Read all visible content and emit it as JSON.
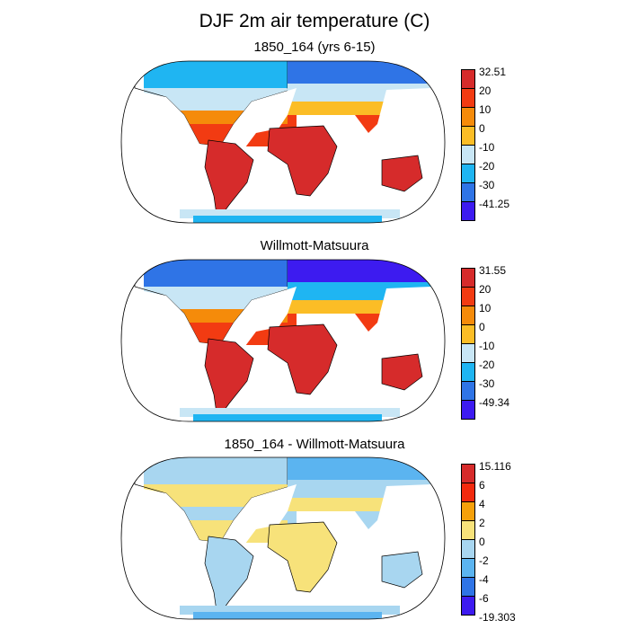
{
  "title": "DJF 2m air temperature (C)",
  "panels": [
    {
      "title": "1850_164 (yrs 6-15)",
      "colorbar": {
        "labels": [
          "32.51",
          "20",
          "10",
          "0",
          "-10",
          "-20",
          "-30",
          "-41.25"
        ],
        "colors": [
          "#d62b2b",
          "#f23b12",
          "#f58b0a",
          "#fbbd26",
          "#c8e6f5",
          "#1fb5f2",
          "#2f74e6",
          "#3d1bf0"
        ]
      }
    },
    {
      "title": "Willmott-Matsuura",
      "colorbar": {
        "labels": [
          "31.55",
          "20",
          "10",
          "0",
          "-10",
          "-20",
          "-30",
          "-49.34"
        ],
        "colors": [
          "#d62b2b",
          "#f23b12",
          "#f58b0a",
          "#fbbd26",
          "#c8e6f5",
          "#1fb5f2",
          "#2f74e6",
          "#3d1bf0"
        ]
      }
    },
    {
      "title": "1850_164 - Willmott-Matsuura",
      "colorbar": {
        "labels": [
          "15.116",
          "6",
          "4",
          "2",
          "0",
          "-2",
          "-4",
          "-6",
          "-19.303"
        ],
        "colors": [
          "#d62b2b",
          "#f22a0e",
          "#f5a00a",
          "#f7e27a",
          "#a8d6f0",
          "#5bb4f0",
          "#2f74e6",
          "#3d1bf0"
        ]
      }
    }
  ]
}
